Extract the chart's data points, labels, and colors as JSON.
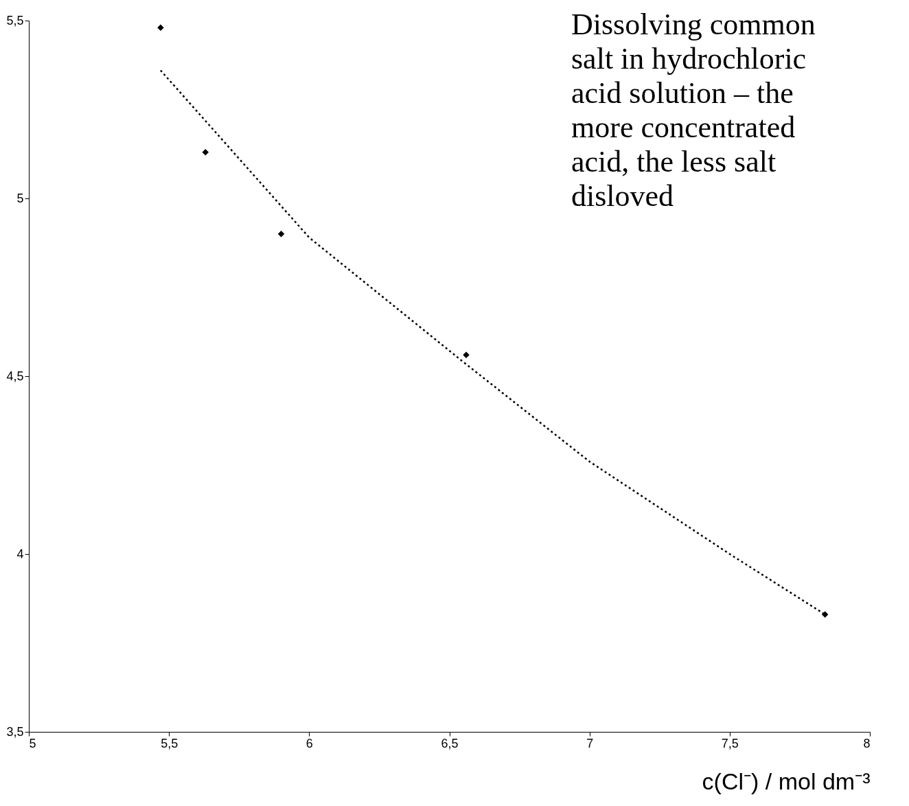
{
  "chart_data": {
    "type": "scatter",
    "xlabel": "c(Cl⁻) / mol dm⁻³",
    "annotations": [
      "Dissolving common\nsalt in hydrochloric\nacid solution – the\nmore concentrated\nacid, the less salt\ndisloved"
    ],
    "xlim": [
      5,
      8
    ],
    "xticks": [
      {
        "value": 5,
        "label": "5"
      },
      {
        "value": 5.5,
        "label": "5,5"
      },
      {
        "value": 6,
        "label": "6"
      },
      {
        "value": 6.5,
        "label": "6,5"
      },
      {
        "value": 7,
        "label": "7"
      },
      {
        "value": 7.5,
        "label": "7,5"
      },
      {
        "value": 8,
        "label": "8"
      }
    ],
    "ylim": [
      3.5,
      5.5
    ],
    "yticks": [
      {
        "value": 3.5,
        "label": "3,5"
      },
      {
        "value": 4,
        "label": "4"
      },
      {
        "value": 4.5,
        "label": "4,5"
      },
      {
        "value": 5,
        "label": "5"
      },
      {
        "value": 5.5,
        "label": "5,5"
      }
    ],
    "grid": false,
    "series": [
      {
        "color": "#000000",
        "marker": "diamond",
        "x": [
          5.47,
          5.63,
          5.9,
          6.56,
          7.84
        ],
        "values": [
          5.48,
          5.13,
          4.9,
          4.56,
          3.83
        ]
      },
      {
        "type": "line",
        "color": "#000000",
        "line_style": "dotted",
        "marker": "none",
        "x": [
          5.47,
          6.0,
          6.55,
          7.0,
          7.5,
          7.84
        ],
        "values": [
          5.36,
          4.89,
          4.54,
          4.26,
          4.0,
          3.83
        ]
      }
    ]
  }
}
